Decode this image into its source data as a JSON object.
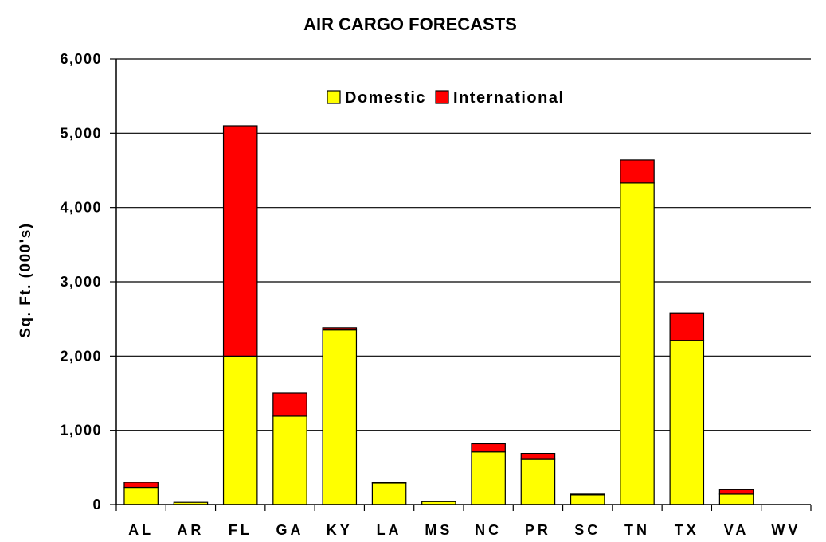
{
  "chart_data": {
    "type": "bar",
    "stacked": true,
    "title": "AIR CARGO FORECASTS",
    "xlabel": "",
    "ylabel": "Sq. Ft. (000's)",
    "ylim": [
      0,
      6000
    ],
    "yticks": [
      0,
      1000,
      2000,
      3000,
      4000,
      5000,
      6000
    ],
    "ytick_labels": [
      "0",
      "1,000",
      "2,000",
      "3,000",
      "4,000",
      "5,000",
      "6,000"
    ],
    "grid": true,
    "legend_position": "top-center",
    "categories": [
      "AL",
      "AR",
      "FL",
      "GA",
      "KY",
      "LA",
      "MS",
      "NC",
      "PR",
      "SC",
      "TN",
      "TX",
      "VA",
      "WV"
    ],
    "series": [
      {
        "name": "Domestic",
        "color": "#FFFF00",
        "values": [
          230,
          30,
          2000,
          1190,
          2350,
          290,
          40,
          710,
          610,
          130,
          4330,
          2210,
          140,
          0
        ]
      },
      {
        "name": "International",
        "color": "#FF0000",
        "values": [
          70,
          0,
          3100,
          310,
          30,
          10,
          0,
          110,
          80,
          10,
          310,
          370,
          60,
          0
        ]
      }
    ]
  }
}
